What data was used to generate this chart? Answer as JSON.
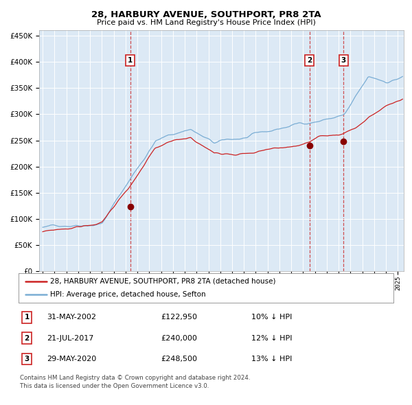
{
  "title": "28, HARBURY AVENUE, SOUTHPORT, PR8 2TA",
  "subtitle": "Price paid vs. HM Land Registry's House Price Index (HPI)",
  "bg_color": "#dce9f5",
  "hpi_color": "#7aadd4",
  "price_color": "#cc2222",
  "marker_color": "#880000",
  "dashed_color": "#cc3333",
  "sale_dates": [
    2002.41,
    2017.55,
    2020.41
  ],
  "sale_prices": [
    122950,
    240000,
    248500
  ],
  "sale_labels": [
    "1",
    "2",
    "3"
  ],
  "legend_entries": [
    "28, HARBURY AVENUE, SOUTHPORT, PR8 2TA (detached house)",
    "HPI: Average price, detached house, Sefton"
  ],
  "table_rows": [
    {
      "num": "1",
      "date": "31-MAY-2002",
      "price": "£122,950",
      "note": "10% ↓ HPI"
    },
    {
      "num": "2",
      "date": "21-JUL-2017",
      "price": "£240,000",
      "note": "12% ↓ HPI"
    },
    {
      "num": "3",
      "date": "29-MAY-2020",
      "price": "£248,500",
      "note": "13% ↓ HPI"
    }
  ],
  "footnote1": "Contains HM Land Registry data © Crown copyright and database right 2024.",
  "footnote2": "This data is licensed under the Open Government Licence v3.0.",
  "ylim": [
    0,
    460000
  ],
  "yticks": [
    0,
    50000,
    100000,
    150000,
    200000,
    250000,
    300000,
    350000,
    400000,
    450000
  ],
  "xlim_start": 1994.7,
  "xlim_end": 2025.5
}
